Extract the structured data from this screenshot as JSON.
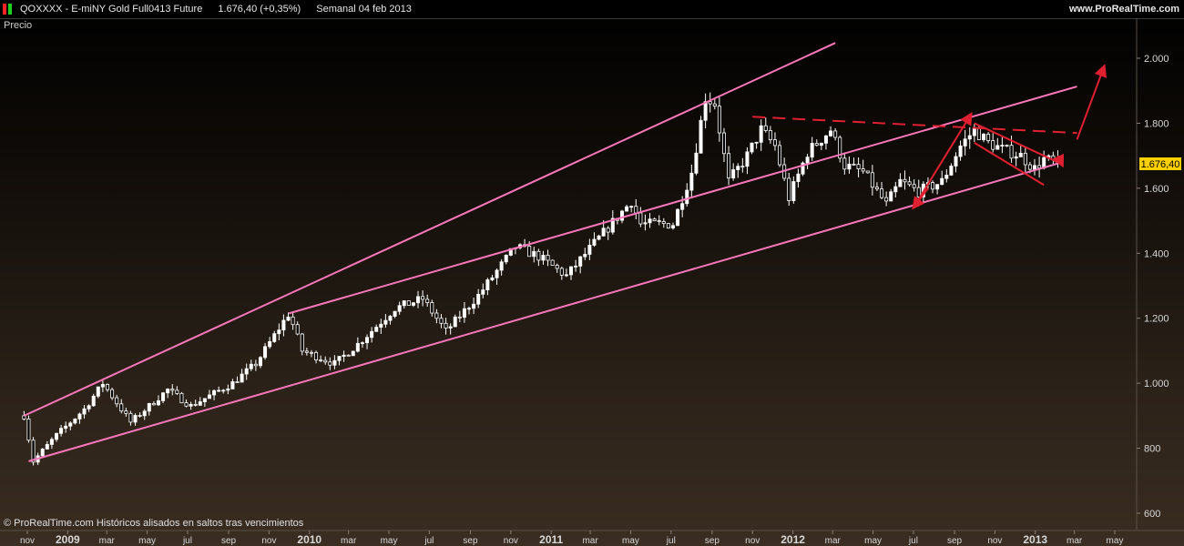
{
  "header": {
    "symbol": "QOXXXX - E-miNY Gold Full0413 Future",
    "price_change": "1.676,40 (+0,35%)",
    "period": "Semanal  04 feb 2013",
    "website": "www.ProRealTime.com"
  },
  "plot_label": "Precio",
  "footer_note": "© ProRealTime.com  Históricos alisados en saltos tras vencimientos",
  "last_price_label": "1.676,40",
  "colors": {
    "candle": "#ffffff",
    "channel": "#ff77bb",
    "annotation": "#e02030",
    "price_tag": "#ffd000",
    "axis_text": "#d8d8d8",
    "icon_red": "#ff2020",
    "icon_green": "#20d020"
  },
  "chart_data": {
    "type": "candlestick",
    "title": "",
    "xlabel": "",
    "ylabel": "Precio",
    "x_range": [
      "2008-10-27",
      "2013-05-27"
    ],
    "ylim": [
      560,
      2150
    ],
    "y_ticks": [
      600,
      800,
      1000,
      1200,
      1400,
      1600,
      1800,
      2000
    ],
    "y_tick_labels": [
      "600",
      "800",
      "1.000",
      "1.200",
      "1.400",
      "1.600",
      "1.800",
      "2.000"
    ],
    "x_ticks": [
      {
        "date": "2008-11-01",
        "label": "nov",
        "bold": false
      },
      {
        "date": "2009-01-01",
        "label": "2009",
        "bold": true
      },
      {
        "date": "2009-03-01",
        "label": "mar",
        "bold": false
      },
      {
        "date": "2009-05-01",
        "label": "may",
        "bold": false
      },
      {
        "date": "2009-07-01",
        "label": "jul",
        "bold": false
      },
      {
        "date": "2009-09-01",
        "label": "sep",
        "bold": false
      },
      {
        "date": "2009-11-01",
        "label": "nov",
        "bold": false
      },
      {
        "date": "2010-01-01",
        "label": "2010",
        "bold": true
      },
      {
        "date": "2010-03-01",
        "label": "mar",
        "bold": false
      },
      {
        "date": "2010-05-01",
        "label": "may",
        "bold": false
      },
      {
        "date": "2010-07-01",
        "label": "jul",
        "bold": false
      },
      {
        "date": "2010-09-01",
        "label": "sep",
        "bold": false
      },
      {
        "date": "2010-11-01",
        "label": "nov",
        "bold": false
      },
      {
        "date": "2011-01-01",
        "label": "2011",
        "bold": true
      },
      {
        "date": "2011-03-01",
        "label": "mar",
        "bold": false
      },
      {
        "date": "2011-05-01",
        "label": "may",
        "bold": false
      },
      {
        "date": "2011-07-01",
        "label": "jul",
        "bold": false
      },
      {
        "date": "2011-09-01",
        "label": "sep",
        "bold": false
      },
      {
        "date": "2011-11-01",
        "label": "nov",
        "bold": false
      },
      {
        "date": "2012-01-01",
        "label": "2012",
        "bold": true
      },
      {
        "date": "2012-03-01",
        "label": "mar",
        "bold": false
      },
      {
        "date": "2012-05-01",
        "label": "may",
        "bold": false
      },
      {
        "date": "2012-07-01",
        "label": "jul",
        "bold": false
      },
      {
        "date": "2012-09-01",
        "label": "sep",
        "bold": false
      },
      {
        "date": "2012-11-01",
        "label": "nov",
        "bold": false
      },
      {
        "date": "2013-01-01",
        "label": "2013",
        "bold": true
      },
      {
        "date": "2013-03-01",
        "label": "mar",
        "bold": false
      },
      {
        "date": "2013-05-01",
        "label": "may",
        "bold": false
      }
    ],
    "price_path": [
      [
        "2008-10-27",
        900
      ],
      [
        "2008-11-10",
        760
      ],
      [
        "2008-12-15",
        840
      ],
      [
        "2009-01-26",
        920
      ],
      [
        "2009-02-23",
        1000
      ],
      [
        "2009-04-06",
        880
      ],
      [
        "2009-06-01",
        980
      ],
      [
        "2009-07-06",
        930
      ],
      [
        "2009-09-07",
        1000
      ],
      [
        "2009-10-12",
        1060
      ],
      [
        "2009-12-01",
        1215
      ],
      [
        "2009-12-21",
        1100
      ],
      [
        "2010-02-08",
        1060
      ],
      [
        "2010-03-15",
        1120
      ],
      [
        "2010-05-10",
        1230
      ],
      [
        "2010-06-21",
        1260
      ],
      [
        "2010-07-26",
        1160
      ],
      [
        "2010-09-13",
        1270
      ],
      [
        "2010-11-08",
        1420
      ],
      [
        "2010-12-13",
        1390
      ],
      [
        "2011-01-24",
        1330
      ],
      [
        "2011-03-07",
        1430
      ],
      [
        "2011-05-02",
        1560
      ],
      [
        "2011-05-16",
        1490
      ],
      [
        "2011-07-04",
        1490
      ],
      [
        "2011-08-01",
        1650
      ],
      [
        "2011-08-22",
        1880
      ],
      [
        "2011-09-05",
        1860
      ],
      [
        "2011-09-26",
        1620
      ],
      [
        "2011-10-24",
        1700
      ],
      [
        "2011-11-14",
        1780
      ],
      [
        "2011-12-05",
        1730
      ],
      [
        "2011-12-26",
        1570
      ],
      [
        "2012-01-23",
        1710
      ],
      [
        "2012-02-27",
        1780
      ],
      [
        "2012-03-19",
        1670
      ],
      [
        "2012-04-16",
        1650
      ],
      [
        "2012-05-21",
        1550
      ],
      [
        "2012-06-11",
        1620
      ],
      [
        "2012-07-09",
        1590
      ],
      [
        "2012-08-13",
        1620
      ],
      [
        "2012-09-10",
        1730
      ],
      [
        "2012-10-01",
        1780
      ],
      [
        "2012-10-22",
        1740
      ],
      [
        "2012-11-12",
        1720
      ],
      [
        "2012-12-10",
        1700
      ],
      [
        "2012-12-31",
        1660
      ],
      [
        "2013-01-14",
        1690
      ],
      [
        "2013-02-04",
        1676.4
      ]
    ],
    "channel_lines": [
      {
        "name": "upper-channel",
        "from": [
          "2008-10-27",
          900
        ],
        "to": [
          "2012-03-05",
          2047
        ]
      },
      {
        "name": "upper-channel-2",
        "from": [
          "2009-12-01",
          1215
        ],
        "to": [
          "2013-03-05",
          1913
        ]
      },
      {
        "name": "lower-channel",
        "from": [
          "2008-11-03",
          760
        ],
        "to": [
          "2013-02-04",
          1676
        ]
      }
    ],
    "annotations": [
      {
        "name": "resistance-dashed",
        "style": "dashed",
        "from": [
          "2011-11-01",
          1820
        ],
        "to": [
          "2013-03-05",
          1770
        ]
      },
      {
        "name": "wedge-upper",
        "style": "solid",
        "from": [
          "2012-10-01",
          1800
        ],
        "to": [
          "2013-02-04",
          1680
        ]
      },
      {
        "name": "wedge-lower",
        "style": "solid",
        "from": [
          "2012-10-01",
          1740
        ],
        "to": [
          "2013-01-14",
          1610
        ]
      },
      {
        "name": "arrow-up-to-high",
        "style": "arrow",
        "from": [
          "2012-07-01",
          1540
        ],
        "to": [
          "2012-09-26",
          1828
        ]
      },
      {
        "name": "arrow-down-left",
        "style": "arrow",
        "from": [
          "2012-07-23",
          1600
        ],
        "to": [
          "2012-07-01",
          1540
        ]
      },
      {
        "name": "arrow-target",
        "style": "arrow",
        "from": [
          "2013-03-05",
          1750
        ],
        "to": [
          "2013-04-15",
          1975
        ]
      },
      {
        "name": "arrow-wedge-exit",
        "style": "arrow",
        "from": [
          "2013-02-04",
          1700
        ],
        "to": [
          "2013-02-11",
          1670
        ]
      }
    ]
  }
}
